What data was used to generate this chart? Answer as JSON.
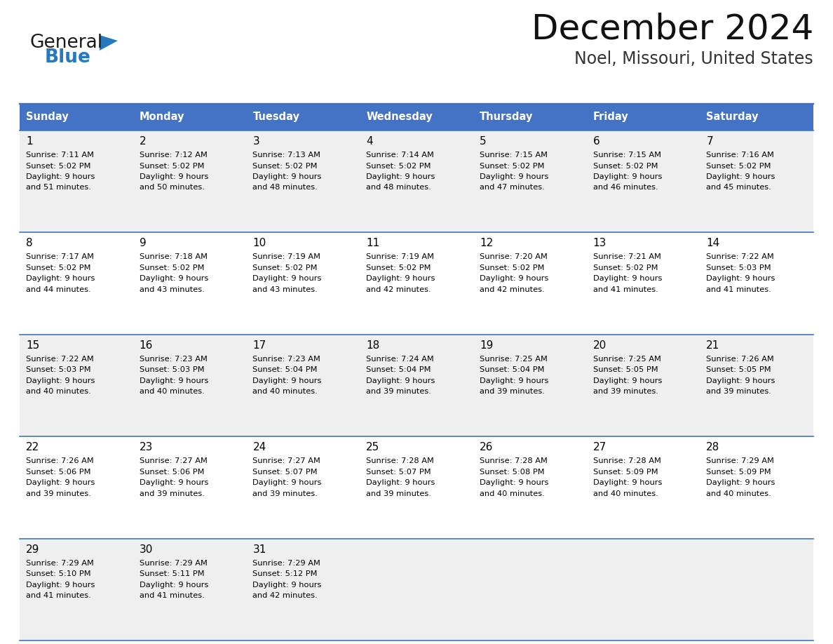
{
  "title": "December 2024",
  "subtitle": "Noel, Missouri, United States",
  "header_color": "#4472C4",
  "header_text_color": "#FFFFFF",
  "day_names": [
    "Sunday",
    "Monday",
    "Tuesday",
    "Wednesday",
    "Thursday",
    "Friday",
    "Saturday"
  ],
  "alt_row_color": "#EFEFEF",
  "white_color": "#FFFFFF",
  "border_color": "#4472C4",
  "text_color": "#000000",
  "days": [
    {
      "day": 1,
      "col": 0,
      "row": 0,
      "sunrise": "7:11 AM",
      "sunset": "5:02 PM",
      "daylight_hours": "9",
      "daylight_minutes": "51"
    },
    {
      "day": 2,
      "col": 1,
      "row": 0,
      "sunrise": "7:12 AM",
      "sunset": "5:02 PM",
      "daylight_hours": "9",
      "daylight_minutes": "50"
    },
    {
      "day": 3,
      "col": 2,
      "row": 0,
      "sunrise": "7:13 AM",
      "sunset": "5:02 PM",
      "daylight_hours": "9",
      "daylight_minutes": "48"
    },
    {
      "day": 4,
      "col": 3,
      "row": 0,
      "sunrise": "7:14 AM",
      "sunset": "5:02 PM",
      "daylight_hours": "9",
      "daylight_minutes": "48"
    },
    {
      "day": 5,
      "col": 4,
      "row": 0,
      "sunrise": "7:15 AM",
      "sunset": "5:02 PM",
      "daylight_hours": "9",
      "daylight_minutes": "47"
    },
    {
      "day": 6,
      "col": 5,
      "row": 0,
      "sunrise": "7:15 AM",
      "sunset": "5:02 PM",
      "daylight_hours": "9",
      "daylight_minutes": "46"
    },
    {
      "day": 7,
      "col": 6,
      "row": 0,
      "sunrise": "7:16 AM",
      "sunset": "5:02 PM",
      "daylight_hours": "9",
      "daylight_minutes": "45"
    },
    {
      "day": 8,
      "col": 0,
      "row": 1,
      "sunrise": "7:17 AM",
      "sunset": "5:02 PM",
      "daylight_hours": "9",
      "daylight_minutes": "44"
    },
    {
      "day": 9,
      "col": 1,
      "row": 1,
      "sunrise": "7:18 AM",
      "sunset": "5:02 PM",
      "daylight_hours": "9",
      "daylight_minutes": "43"
    },
    {
      "day": 10,
      "col": 2,
      "row": 1,
      "sunrise": "7:19 AM",
      "sunset": "5:02 PM",
      "daylight_hours": "9",
      "daylight_minutes": "43"
    },
    {
      "day": 11,
      "col": 3,
      "row": 1,
      "sunrise": "7:19 AM",
      "sunset": "5:02 PM",
      "daylight_hours": "9",
      "daylight_minutes": "42"
    },
    {
      "day": 12,
      "col": 4,
      "row": 1,
      "sunrise": "7:20 AM",
      "sunset": "5:02 PM",
      "daylight_hours": "9",
      "daylight_minutes": "42"
    },
    {
      "day": 13,
      "col": 5,
      "row": 1,
      "sunrise": "7:21 AM",
      "sunset": "5:02 PM",
      "daylight_hours": "9",
      "daylight_minutes": "41"
    },
    {
      "day": 14,
      "col": 6,
      "row": 1,
      "sunrise": "7:22 AM",
      "sunset": "5:03 PM",
      "daylight_hours": "9",
      "daylight_minutes": "41"
    },
    {
      "day": 15,
      "col": 0,
      "row": 2,
      "sunrise": "7:22 AM",
      "sunset": "5:03 PM",
      "daylight_hours": "9",
      "daylight_minutes": "40"
    },
    {
      "day": 16,
      "col": 1,
      "row": 2,
      "sunrise": "7:23 AM",
      "sunset": "5:03 PM",
      "daylight_hours": "9",
      "daylight_minutes": "40"
    },
    {
      "day": 17,
      "col": 2,
      "row": 2,
      "sunrise": "7:23 AM",
      "sunset": "5:04 PM",
      "daylight_hours": "9",
      "daylight_minutes": "40"
    },
    {
      "day": 18,
      "col": 3,
      "row": 2,
      "sunrise": "7:24 AM",
      "sunset": "5:04 PM",
      "daylight_hours": "9",
      "daylight_minutes": "39"
    },
    {
      "day": 19,
      "col": 4,
      "row": 2,
      "sunrise": "7:25 AM",
      "sunset": "5:04 PM",
      "daylight_hours": "9",
      "daylight_minutes": "39"
    },
    {
      "day": 20,
      "col": 5,
      "row": 2,
      "sunrise": "7:25 AM",
      "sunset": "5:05 PM",
      "daylight_hours": "9",
      "daylight_minutes": "39"
    },
    {
      "day": 21,
      "col": 6,
      "row": 2,
      "sunrise": "7:26 AM",
      "sunset": "5:05 PM",
      "daylight_hours": "9",
      "daylight_minutes": "39"
    },
    {
      "day": 22,
      "col": 0,
      "row": 3,
      "sunrise": "7:26 AM",
      "sunset": "5:06 PM",
      "daylight_hours": "9",
      "daylight_minutes": "39"
    },
    {
      "day": 23,
      "col": 1,
      "row": 3,
      "sunrise": "7:27 AM",
      "sunset": "5:06 PM",
      "daylight_hours": "9",
      "daylight_minutes": "39"
    },
    {
      "day": 24,
      "col": 2,
      "row": 3,
      "sunrise": "7:27 AM",
      "sunset": "5:07 PM",
      "daylight_hours": "9",
      "daylight_minutes": "39"
    },
    {
      "day": 25,
      "col": 3,
      "row": 3,
      "sunrise": "7:28 AM",
      "sunset": "5:07 PM",
      "daylight_hours": "9",
      "daylight_minutes": "39"
    },
    {
      "day": 26,
      "col": 4,
      "row": 3,
      "sunrise": "7:28 AM",
      "sunset": "5:08 PM",
      "daylight_hours": "9",
      "daylight_minutes": "40"
    },
    {
      "day": 27,
      "col": 5,
      "row": 3,
      "sunrise": "7:28 AM",
      "sunset": "5:09 PM",
      "daylight_hours": "9",
      "daylight_minutes": "40"
    },
    {
      "day": 28,
      "col": 6,
      "row": 3,
      "sunrise": "7:29 AM",
      "sunset": "5:09 PM",
      "daylight_hours": "9",
      "daylight_minutes": "40"
    },
    {
      "day": 29,
      "col": 0,
      "row": 4,
      "sunrise": "7:29 AM",
      "sunset": "5:10 PM",
      "daylight_hours": "9",
      "daylight_minutes": "41"
    },
    {
      "day": 30,
      "col": 1,
      "row": 4,
      "sunrise": "7:29 AM",
      "sunset": "5:11 PM",
      "daylight_hours": "9",
      "daylight_minutes": "41"
    },
    {
      "day": 31,
      "col": 2,
      "row": 4,
      "sunrise": "7:29 AM",
      "sunset": "5:12 PM",
      "daylight_hours": "9",
      "daylight_minutes": "42"
    }
  ],
  "logo_general_color": "#1a1a1a",
  "logo_blue_color": "#2878BE",
  "logo_triangle_color": "#2878BE",
  "fig_width": 11.88,
  "fig_height": 9.18,
  "dpi": 100
}
